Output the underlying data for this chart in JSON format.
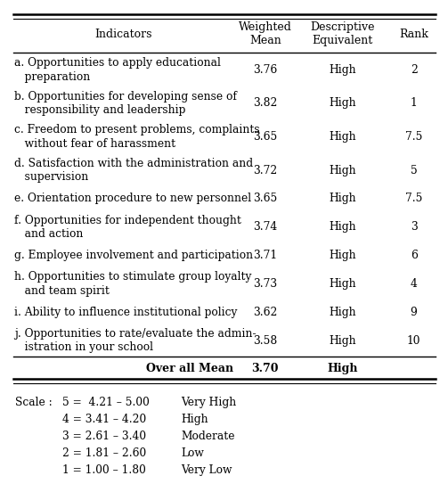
{
  "headers": [
    "Indicators",
    "Weighted\nMean",
    "Descriptive\nEquivalent",
    "Rank"
  ],
  "rows": [
    [
      "a. Opportunities to apply educational\n   preparation",
      "3.76",
      "High",
      "2"
    ],
    [
      "b. Opportunities for developing sense of\n   responsibility and leadership",
      "3.82",
      "High",
      "1"
    ],
    [
      "c. Freedom to present problems, complaints\n   without fear of harassment",
      "3.65",
      "High",
      "7.5"
    ],
    [
      "d. Satisfaction with the administration and\n   supervision",
      "3.72",
      "High",
      "5"
    ],
    [
      "e. Orientation procedure to new personnel",
      "3.65",
      "High",
      "7.5"
    ],
    [
      "f. Opportunities for independent thought\n   and action",
      "3.74",
      "High",
      "3"
    ],
    [
      "g. Employee involvement and participation",
      "3.71",
      "High",
      "6"
    ],
    [
      "h. Opportunities to stimulate group loyalty\n   and team spirit",
      "3.73",
      "High",
      "4"
    ],
    [
      "i. Ability to influence institutional policy",
      "3.62",
      "High",
      "9"
    ],
    [
      "j. Opportunities to rate/evaluate the admin-\n   istration in your school",
      "3.58",
      "High",
      "10"
    ]
  ],
  "overall_row": [
    "Over all Mean",
    "3.70",
    "High",
    ""
  ],
  "scale_lines": [
    [
      "5 =  4.21 – 5.00",
      "Very High"
    ],
    [
      "4 = 3.41 – 4.20",
      "High"
    ],
    [
      "3 = 2.61 – 3.40",
      "Moderate"
    ],
    [
      "2 = 1.81 – 2.60",
      "Low"
    ],
    [
      "1 = 1.00 – 1.80",
      "Very Low"
    ]
  ],
  "scale_label": "Scale :",
  "bg_color": "#ffffff",
  "text_color": "#000000",
  "header_fontsize": 9.0,
  "body_fontsize": 8.8,
  "overall_fontsize": 9.0,
  "scale_fontsize": 8.8
}
